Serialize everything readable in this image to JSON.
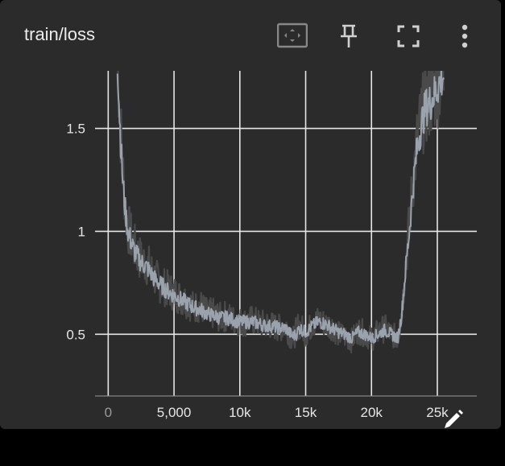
{
  "card": {
    "title": "train/loss",
    "toolbar": {
      "fit_icon": "fit-to-data-icon",
      "pin_icon": "pin-icon",
      "fullscreen_icon": "fullscreen-icon",
      "more_icon": "more-vert-icon",
      "edit_icon": "pencil-icon"
    }
  },
  "colors": {
    "card_bg": "#2b2b2b",
    "grid": "#e6e6e6",
    "raw_line": "#4a4a4a",
    "smoothed_line": "#9aa3ad"
  },
  "chart_data": {
    "type": "line",
    "title": "",
    "xlabel": "",
    "ylabel": "",
    "xlim": [
      -1000,
      28000
    ],
    "ylim": [
      0.2,
      1.78
    ],
    "x_ticks": [
      0,
      5000,
      10000,
      15000,
      20000,
      25000
    ],
    "x_tick_labels": [
      "0",
      "5,000",
      "10k",
      "15k",
      "20k",
      "25k"
    ],
    "y_ticks": [
      0.5,
      1,
      1.5
    ],
    "y_tick_labels": [
      "0.5",
      "1",
      "1.5"
    ],
    "grid": true,
    "series": [
      {
        "role": "raw",
        "x": [
          700,
          900,
          1100,
          1300,
          1500,
          2000,
          2500,
          3000,
          3500,
          4000,
          4500,
          5000,
          5500,
          6000,
          6500,
          7000,
          7500,
          8000,
          8500,
          9000,
          9500,
          10000,
          10500,
          11000,
          11500,
          12000,
          12500,
          13000,
          13500,
          14000,
          14300,
          14500,
          15000,
          15500,
          16000,
          16500,
          17000,
          17500,
          18000,
          18500,
          19000,
          19500,
          20000,
          20500,
          21000,
          21500,
          22000,
          22300,
          22600,
          22900,
          23200,
          23500,
          23800,
          24100,
          24500,
          25000,
          25500
        ],
        "y": [
          1.85,
          1.55,
          1.3,
          1.12,
          1.02,
          0.92,
          0.86,
          0.84,
          0.78,
          0.74,
          0.72,
          0.7,
          0.68,
          0.66,
          0.63,
          0.64,
          0.6,
          0.6,
          0.58,
          0.59,
          0.57,
          0.56,
          0.56,
          0.57,
          0.55,
          0.55,
          0.54,
          0.53,
          0.54,
          0.47,
          0.52,
          0.55,
          0.5,
          0.55,
          0.57,
          0.55,
          0.54,
          0.5,
          0.49,
          0.47,
          0.52,
          0.5,
          0.48,
          0.51,
          0.53,
          0.5,
          0.48,
          0.62,
          0.85,
          1.05,
          1.28,
          1.45,
          1.55,
          1.62,
          1.65,
          1.72,
          1.78
        ]
      },
      {
        "role": "smoothed",
        "x": [
          700,
          900,
          1100,
          1300,
          1500,
          2000,
          2500,
          3000,
          3500,
          4000,
          4500,
          5000,
          5500,
          6000,
          6500,
          7000,
          7500,
          8000,
          8500,
          9000,
          9500,
          10000,
          10500,
          11000,
          11500,
          12000,
          12500,
          13000,
          13500,
          14000,
          14300,
          14500,
          15000,
          15500,
          16000,
          16500,
          17000,
          17500,
          18000,
          18500,
          19000,
          19500,
          20000,
          20500,
          21000,
          21500,
          22000,
          22300,
          22600,
          22900,
          23200,
          23500,
          23800,
          24100,
          24500,
          25000,
          25500
        ],
        "y": [
          1.85,
          1.5,
          1.25,
          1.1,
          1.0,
          0.9,
          0.85,
          0.82,
          0.77,
          0.74,
          0.71,
          0.69,
          0.67,
          0.65,
          0.63,
          0.62,
          0.6,
          0.59,
          0.58,
          0.58,
          0.57,
          0.56,
          0.56,
          0.56,
          0.55,
          0.54,
          0.54,
          0.53,
          0.53,
          0.49,
          0.5,
          0.53,
          0.51,
          0.54,
          0.56,
          0.55,
          0.53,
          0.51,
          0.5,
          0.48,
          0.51,
          0.5,
          0.48,
          0.5,
          0.52,
          0.5,
          0.48,
          0.6,
          0.82,
          1.02,
          1.25,
          1.42,
          1.52,
          1.6,
          1.63,
          1.7,
          1.76
        ]
      }
    ]
  }
}
